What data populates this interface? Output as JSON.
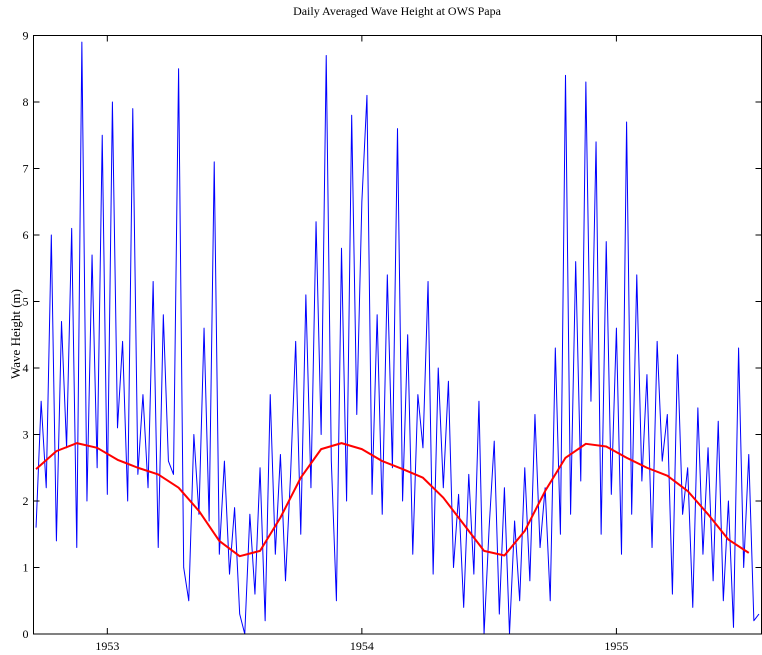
{
  "chart_data": {
    "type": "line",
    "title": "Daily Averaged Wave Height at OWS Papa",
    "y_label": "Wave Height (m)",
    "xlim": [
      1952.71,
      1955.57
    ],
    "xticks": [
      1953,
      1954,
      1955
    ],
    "ylim": [
      0,
      9
    ],
    "yticks": [
      0,
      1,
      2,
      3,
      4,
      5,
      6,
      7,
      8,
      9
    ],
    "grid": false,
    "series": [
      {
        "color": "#0000ff",
        "line_width": 1,
        "x": [
          1952.72,
          1952.74,
          1952.76,
          1952.78,
          1952.8,
          1952.82,
          1952.84,
          1952.86,
          1952.88,
          1952.9,
          1952.92,
          1952.94,
          1952.96,
          1952.98,
          1953.0,
          1953.02,
          1953.04,
          1953.06,
          1953.08,
          1953.1,
          1953.12,
          1953.14,
          1953.16,
          1953.18,
          1953.2,
          1953.22,
          1953.24,
          1953.26,
          1953.28,
          1953.3,
          1953.32,
          1953.34,
          1953.36,
          1953.38,
          1953.4,
          1953.42,
          1953.44,
          1953.46,
          1953.48,
          1953.5,
          1953.52,
          1953.54,
          1953.56,
          1953.58,
          1953.6,
          1953.62,
          1953.64,
          1953.66,
          1953.68,
          1953.7,
          1953.72,
          1953.74,
          1953.76,
          1953.78,
          1953.8,
          1953.82,
          1953.84,
          1953.86,
          1953.88,
          1953.9,
          1953.92,
          1953.94,
          1953.96,
          1953.98,
          1954.0,
          1954.02,
          1954.04,
          1954.06,
          1954.08,
          1954.1,
          1954.12,
          1954.14,
          1954.16,
          1954.18,
          1954.2,
          1954.22,
          1954.24,
          1954.26,
          1954.28,
          1954.3,
          1954.32,
          1954.34,
          1954.36,
          1954.38,
          1954.4,
          1954.42,
          1954.44,
          1954.46,
          1954.48,
          1954.5,
          1954.52,
          1954.54,
          1954.56,
          1954.58,
          1954.6,
          1954.62,
          1954.64,
          1954.66,
          1954.68,
          1954.7,
          1954.72,
          1954.74,
          1954.76,
          1954.78,
          1954.8,
          1954.82,
          1954.84,
          1954.86,
          1954.88,
          1954.9,
          1954.92,
          1954.94,
          1954.96,
          1954.98,
          1955.0,
          1955.02,
          1955.04,
          1955.06,
          1955.08,
          1955.1,
          1955.12,
          1955.14,
          1955.16,
          1955.18,
          1955.2,
          1955.22,
          1955.24,
          1955.26,
          1955.28,
          1955.3,
          1955.32,
          1955.34,
          1955.36,
          1955.38,
          1955.4,
          1955.42,
          1955.44,
          1955.46,
          1955.48,
          1955.5,
          1955.52,
          1955.54,
          1955.56
        ],
        "values": [
          1.6,
          3.5,
          2.2,
          6.0,
          1.4,
          4.7,
          2.8,
          6.1,
          1.3,
          8.9,
          2.0,
          5.7,
          2.5,
          7.5,
          2.1,
          8.0,
          3.1,
          4.4,
          2.0,
          7.9,
          2.4,
          3.6,
          2.2,
          5.3,
          1.3,
          4.8,
          2.6,
          2.4,
          8.5,
          1.0,
          0.5,
          3.0,
          1.8,
          4.6,
          1.7,
          7.1,
          1.2,
          2.6,
          0.9,
          1.9,
          0.3,
          0.0,
          1.8,
          0.6,
          2.5,
          0.2,
          3.6,
          1.2,
          2.7,
          0.8,
          2.4,
          4.4,
          1.5,
          5.1,
          2.2,
          6.2,
          3.0,
          8.7,
          2.6,
          0.5,
          5.8,
          2.0,
          7.8,
          3.3,
          6.5,
          8.1,
          2.1,
          4.8,
          1.8,
          5.4,
          2.5,
          7.6,
          2.0,
          4.5,
          1.2,
          3.6,
          2.8,
          5.3,
          0.9,
          4.0,
          2.2,
          3.8,
          1.0,
          2.1,
          0.4,
          2.4,
          0.9,
          3.5,
          0.0,
          1.6,
          2.9,
          0.3,
          2.2,
          0.0,
          1.7,
          0.5,
          2.5,
          0.8,
          3.3,
          1.3,
          2.2,
          0.5,
          4.3,
          1.5,
          8.4,
          1.8,
          5.6,
          2.3,
          8.3,
          3.5,
          7.4,
          1.5,
          5.9,
          2.1,
          4.6,
          1.2,
          7.7,
          1.8,
          5.4,
          2.3,
          3.9,
          1.3,
          4.4,
          2.6,
          3.3,
          0.6,
          4.2,
          1.8,
          2.5,
          0.4,
          3.4,
          1.2,
          2.8,
          0.8,
          3.2,
          0.5,
          2.0,
          0.1,
          4.3,
          1.0,
          2.7,
          0.2,
          0.3
        ]
      },
      {
        "color": "#ff0000",
        "line_width": 2,
        "x": [
          1952.72,
          1952.8,
          1952.88,
          1952.96,
          1953.04,
          1953.12,
          1953.2,
          1953.28,
          1953.36,
          1953.44,
          1953.52,
          1953.6,
          1953.68,
          1953.76,
          1953.84,
          1953.92,
          1954.0,
          1954.08,
          1954.16,
          1954.24,
          1954.32,
          1954.4,
          1954.48,
          1954.56,
          1954.64,
          1954.72,
          1954.8,
          1954.88,
          1954.96,
          1955.04,
          1955.12,
          1955.2,
          1955.28,
          1955.36,
          1955.44,
          1955.52
        ],
        "values": [
          2.48,
          2.75,
          2.87,
          2.8,
          2.62,
          2.5,
          2.4,
          2.2,
          1.85,
          1.4,
          1.17,
          1.25,
          1.75,
          2.35,
          2.78,
          2.87,
          2.78,
          2.6,
          2.48,
          2.35,
          2.05,
          1.65,
          1.25,
          1.18,
          1.55,
          2.15,
          2.65,
          2.86,
          2.82,
          2.65,
          2.5,
          2.38,
          2.15,
          1.8,
          1.42,
          1.22
        ]
      }
    ]
  }
}
